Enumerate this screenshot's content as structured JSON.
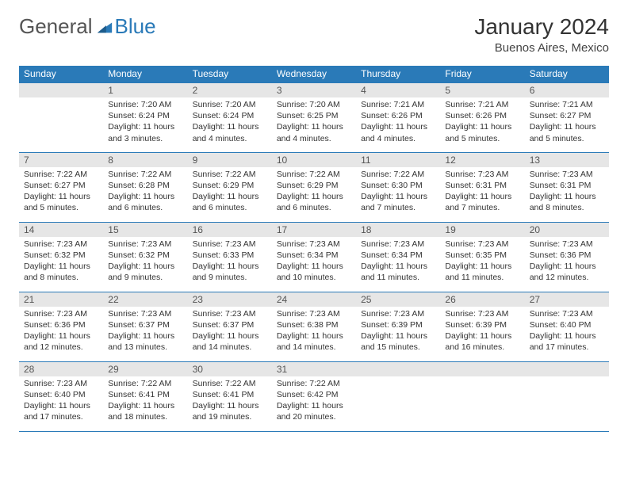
{
  "brand": {
    "part1": "General",
    "part2": "Blue"
  },
  "title": "January 2024",
  "location": "Buenos Aires, Mexico",
  "columns": [
    "Sunday",
    "Monday",
    "Tuesday",
    "Wednesday",
    "Thursday",
    "Friday",
    "Saturday"
  ],
  "colors": {
    "header_bg": "#2a7ab8",
    "header_text": "#ffffff",
    "daynum_bg": "#e6e6e6",
    "body_text": "#333333",
    "row_border": "#2a7ab8"
  },
  "typography": {
    "title_fontsize": 28,
    "location_fontsize": 15,
    "header_fontsize": 12,
    "daynum_fontsize": 12,
    "cell_fontsize": 10.5
  },
  "weeks": [
    [
      {
        "n": "",
        "sr": "",
        "ss": "",
        "dl": ""
      },
      {
        "n": "1",
        "sr": "Sunrise: 7:20 AM",
        "ss": "Sunset: 6:24 PM",
        "dl": "Daylight: 11 hours and 3 minutes."
      },
      {
        "n": "2",
        "sr": "Sunrise: 7:20 AM",
        "ss": "Sunset: 6:24 PM",
        "dl": "Daylight: 11 hours and 4 minutes."
      },
      {
        "n": "3",
        "sr": "Sunrise: 7:20 AM",
        "ss": "Sunset: 6:25 PM",
        "dl": "Daylight: 11 hours and 4 minutes."
      },
      {
        "n": "4",
        "sr": "Sunrise: 7:21 AM",
        "ss": "Sunset: 6:26 PM",
        "dl": "Daylight: 11 hours and 4 minutes."
      },
      {
        "n": "5",
        "sr": "Sunrise: 7:21 AM",
        "ss": "Sunset: 6:26 PM",
        "dl": "Daylight: 11 hours and 5 minutes."
      },
      {
        "n": "6",
        "sr": "Sunrise: 7:21 AM",
        "ss": "Sunset: 6:27 PM",
        "dl": "Daylight: 11 hours and 5 minutes."
      }
    ],
    [
      {
        "n": "7",
        "sr": "Sunrise: 7:22 AM",
        "ss": "Sunset: 6:27 PM",
        "dl": "Daylight: 11 hours and 5 minutes."
      },
      {
        "n": "8",
        "sr": "Sunrise: 7:22 AM",
        "ss": "Sunset: 6:28 PM",
        "dl": "Daylight: 11 hours and 6 minutes."
      },
      {
        "n": "9",
        "sr": "Sunrise: 7:22 AM",
        "ss": "Sunset: 6:29 PM",
        "dl": "Daylight: 11 hours and 6 minutes."
      },
      {
        "n": "10",
        "sr": "Sunrise: 7:22 AM",
        "ss": "Sunset: 6:29 PM",
        "dl": "Daylight: 11 hours and 6 minutes."
      },
      {
        "n": "11",
        "sr": "Sunrise: 7:22 AM",
        "ss": "Sunset: 6:30 PM",
        "dl": "Daylight: 11 hours and 7 minutes."
      },
      {
        "n": "12",
        "sr": "Sunrise: 7:23 AM",
        "ss": "Sunset: 6:31 PM",
        "dl": "Daylight: 11 hours and 7 minutes."
      },
      {
        "n": "13",
        "sr": "Sunrise: 7:23 AM",
        "ss": "Sunset: 6:31 PM",
        "dl": "Daylight: 11 hours and 8 minutes."
      }
    ],
    [
      {
        "n": "14",
        "sr": "Sunrise: 7:23 AM",
        "ss": "Sunset: 6:32 PM",
        "dl": "Daylight: 11 hours and 8 minutes."
      },
      {
        "n": "15",
        "sr": "Sunrise: 7:23 AM",
        "ss": "Sunset: 6:32 PM",
        "dl": "Daylight: 11 hours and 9 minutes."
      },
      {
        "n": "16",
        "sr": "Sunrise: 7:23 AM",
        "ss": "Sunset: 6:33 PM",
        "dl": "Daylight: 11 hours and 9 minutes."
      },
      {
        "n": "17",
        "sr": "Sunrise: 7:23 AM",
        "ss": "Sunset: 6:34 PM",
        "dl": "Daylight: 11 hours and 10 minutes."
      },
      {
        "n": "18",
        "sr": "Sunrise: 7:23 AM",
        "ss": "Sunset: 6:34 PM",
        "dl": "Daylight: 11 hours and 11 minutes."
      },
      {
        "n": "19",
        "sr": "Sunrise: 7:23 AM",
        "ss": "Sunset: 6:35 PM",
        "dl": "Daylight: 11 hours and 11 minutes."
      },
      {
        "n": "20",
        "sr": "Sunrise: 7:23 AM",
        "ss": "Sunset: 6:36 PM",
        "dl": "Daylight: 11 hours and 12 minutes."
      }
    ],
    [
      {
        "n": "21",
        "sr": "Sunrise: 7:23 AM",
        "ss": "Sunset: 6:36 PM",
        "dl": "Daylight: 11 hours and 12 minutes."
      },
      {
        "n": "22",
        "sr": "Sunrise: 7:23 AM",
        "ss": "Sunset: 6:37 PM",
        "dl": "Daylight: 11 hours and 13 minutes."
      },
      {
        "n": "23",
        "sr": "Sunrise: 7:23 AM",
        "ss": "Sunset: 6:37 PM",
        "dl": "Daylight: 11 hours and 14 minutes."
      },
      {
        "n": "24",
        "sr": "Sunrise: 7:23 AM",
        "ss": "Sunset: 6:38 PM",
        "dl": "Daylight: 11 hours and 14 minutes."
      },
      {
        "n": "25",
        "sr": "Sunrise: 7:23 AM",
        "ss": "Sunset: 6:39 PM",
        "dl": "Daylight: 11 hours and 15 minutes."
      },
      {
        "n": "26",
        "sr": "Sunrise: 7:23 AM",
        "ss": "Sunset: 6:39 PM",
        "dl": "Daylight: 11 hours and 16 minutes."
      },
      {
        "n": "27",
        "sr": "Sunrise: 7:23 AM",
        "ss": "Sunset: 6:40 PM",
        "dl": "Daylight: 11 hours and 17 minutes."
      }
    ],
    [
      {
        "n": "28",
        "sr": "Sunrise: 7:23 AM",
        "ss": "Sunset: 6:40 PM",
        "dl": "Daylight: 11 hours and 17 minutes."
      },
      {
        "n": "29",
        "sr": "Sunrise: 7:22 AM",
        "ss": "Sunset: 6:41 PM",
        "dl": "Daylight: 11 hours and 18 minutes."
      },
      {
        "n": "30",
        "sr": "Sunrise: 7:22 AM",
        "ss": "Sunset: 6:41 PM",
        "dl": "Daylight: 11 hours and 19 minutes."
      },
      {
        "n": "31",
        "sr": "Sunrise: 7:22 AM",
        "ss": "Sunset: 6:42 PM",
        "dl": "Daylight: 11 hours and 20 minutes."
      },
      {
        "n": "",
        "sr": "",
        "ss": "",
        "dl": ""
      },
      {
        "n": "",
        "sr": "",
        "ss": "",
        "dl": ""
      },
      {
        "n": "",
        "sr": "",
        "ss": "",
        "dl": ""
      }
    ]
  ]
}
